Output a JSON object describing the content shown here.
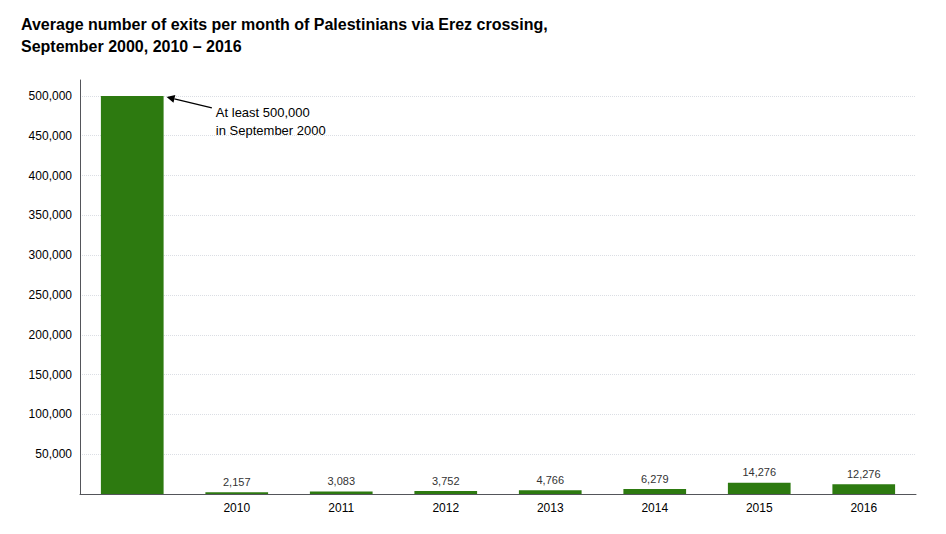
{
  "chart_data": {
    "type": "bar",
    "title": "Average number of exits per month of Palestinians via Erez crossing,\nSeptember 2000, 2010 – 2016",
    "categories": [
      null,
      "2010",
      "2011",
      "2012",
      "2013",
      "2014",
      "2015",
      "2016"
    ],
    "values": [
      500000,
      2157,
      3083,
      3752,
      4766,
      6279,
      14276,
      12276
    ],
    "data_labels": true,
    "value_labels": [
      null,
      "2,157",
      "3,083",
      "3,752",
      "4,766",
      "6,279",
      "14,276",
      "12,276"
    ],
    "color": "#2d7a10",
    "ylim": [
      0,
      520000
    ],
    "yticks": [
      {
        "value": 50000,
        "label": "50,000"
      },
      {
        "value": 100000,
        "label": "100,000"
      },
      {
        "value": 150000,
        "label": "150,000"
      },
      {
        "value": 200000,
        "label": "200,000"
      },
      {
        "value": 250000,
        "label": "250,000"
      },
      {
        "value": 300000,
        "label": "300,000"
      },
      {
        "value": 350000,
        "label": "350,000"
      },
      {
        "value": 400000,
        "label": "400,000"
      },
      {
        "value": 450000,
        "label": "450,000"
      },
      {
        "value": 500000,
        "label": "500,000"
      }
    ],
    "grid": true,
    "annotations": [
      "At least 500,000",
      "in September 2000"
    ]
  }
}
